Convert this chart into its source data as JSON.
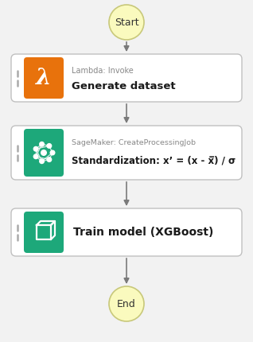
{
  "bg_color": "#f2f2f2",
  "start_end_color": "#fafabe",
  "start_end_border": "#c8c87a",
  "arrow_color": "#7a7a7a",
  "box_border_color": "#c0c0c0",
  "box_bg": "#ffffff",
  "lambda_color": "#e8720c",
  "sagemaker_color": "#1da87a",
  "train_color": "#1da87a",
  "parallel_color": "#aaaaaa",
  "title_start": "Start",
  "title_end": "End",
  "box1_label_small": "Lambda: Invoke",
  "box1_label_big": "Generate dataset",
  "box2_label_small": "SageMaker: CreateProcessingJob",
  "box2_label_big": "Standardization: x’ = (x - x̅) / σ",
  "box3_label_big": "Train model (XGBoost)",
  "fig_w": 3.18,
  "fig_h": 4.3,
  "dpi": 100
}
